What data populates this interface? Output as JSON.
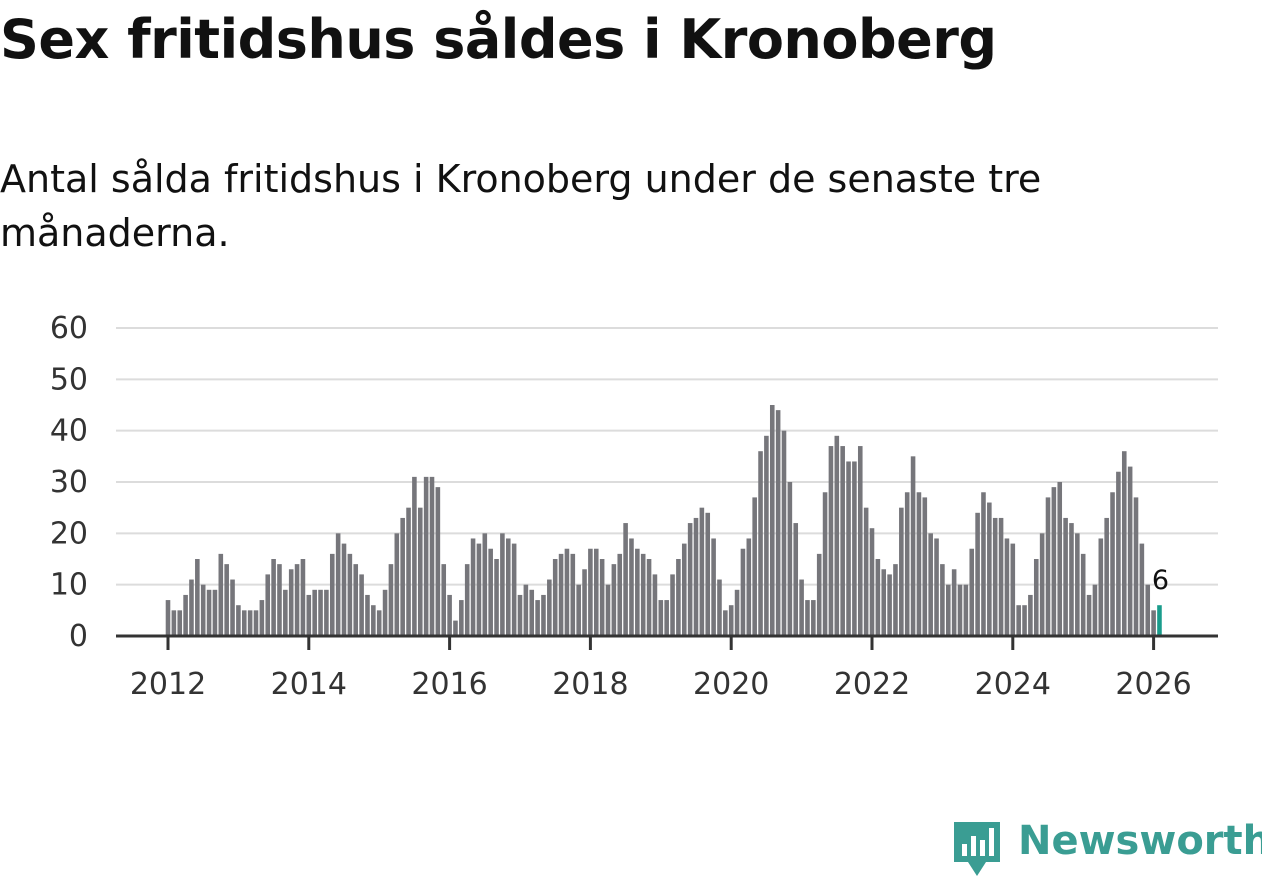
{
  "title": "Sex fritidshus såldes i Kronoberg",
  "subtitle": "Antal sålda fritidshus i Kronoberg under de senaste tre månaderna.",
  "brand": {
    "name": "Newsworthy",
    "color": "#3a9d93"
  },
  "chart_data": {
    "type": "bar",
    "title": "Sex fritidshus såldes i Kronoberg",
    "xlabel": "",
    "ylabel": "",
    "ylim": [
      0,
      60
    ],
    "yticks": [
      0,
      10,
      20,
      30,
      40,
      50,
      60
    ],
    "xticks": [
      "2012",
      "2014",
      "2016",
      "2018",
      "2020",
      "2022",
      "2024",
      "2026"
    ],
    "start": "2012-01",
    "values": [
      7,
      5,
      5,
      8,
      11,
      15,
      10,
      9,
      9,
      16,
      14,
      11,
      6,
      5,
      5,
      5,
      7,
      12,
      15,
      14,
      9,
      13,
      14,
      15,
      8,
      9,
      9,
      9,
      16,
      20,
      18,
      16,
      14,
      12,
      8,
      6,
      5,
      9,
      14,
      20,
      23,
      25,
      31,
      25,
      31,
      31,
      29,
      14,
      8,
      3,
      7,
      14,
      19,
      18,
      20,
      17,
      15,
      20,
      19,
      18,
      8,
      10,
      9,
      7,
      8,
      11,
      15,
      16,
      17,
      16,
      10,
      13,
      17,
      17,
      15,
      10,
      14,
      16,
      22,
      19,
      17,
      16,
      15,
      12,
      7,
      7,
      12,
      15,
      18,
      22,
      23,
      25,
      24,
      19,
      11,
      5,
      6,
      9,
      17,
      19,
      27,
      36,
      39,
      45,
      44,
      40,
      30,
      22,
      11,
      7,
      7,
      16,
      28,
      37,
      39,
      37,
      34,
      34,
      37,
      25,
      21,
      15,
      13,
      12,
      14,
      25,
      28,
      35,
      28,
      27,
      20,
      19,
      14,
      10,
      13,
      10,
      10,
      17,
      24,
      28,
      26,
      23,
      23,
      19,
      18,
      6,
      6,
      8,
      15,
      20,
      27,
      29,
      30,
      23,
      22,
      20,
      16,
      8,
      10,
      19,
      23,
      28,
      32,
      36,
      33,
      27,
      18,
      10,
      5,
      6
    ],
    "highlight": {
      "label": "6",
      "color": "#1a9c8c"
    },
    "bar_color": "#76767b",
    "grid": true
  }
}
